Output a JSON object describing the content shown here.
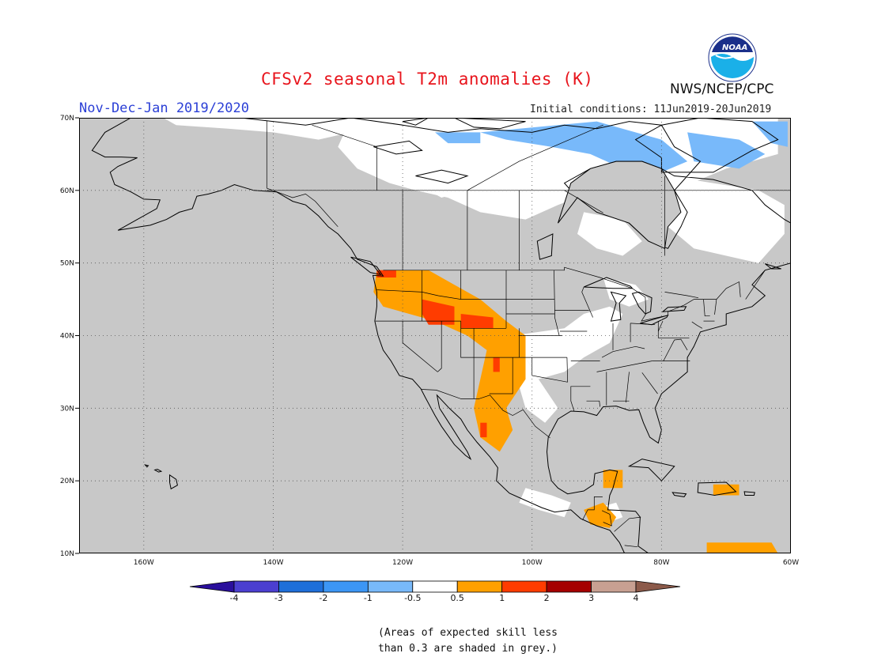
{
  "header": {
    "title": "CFSv2 seasonal T2m anomalies (K)",
    "season": "Nov-Dec-Jan 2019/2020",
    "initial_conditions": "Initial conditions: 11Jun2019-20Jun2019",
    "agency": "NWS/NCEP/CPC",
    "logo_text": "NOAA"
  },
  "map": {
    "projection": "lat-lon",
    "lon_range": [
      -170,
      -60
    ],
    "lat_range": [
      10,
      70
    ],
    "lat_ticks": [
      "10N",
      "20N",
      "30N",
      "40N",
      "50N",
      "60N",
      "70N"
    ],
    "lon_ticks": [
      "160W",
      "140W",
      "120W",
      "100W",
      "80W",
      "60W"
    ],
    "grid": "dotted",
    "colors": {
      "low_skill": "#c8c8c8",
      "near_zero": "#ffffff",
      "minus_1_to_minus_0_5": "#78b9fa",
      "minus_2_to_minus_1": "#3c96f5",
      "plus_0_5_to_1": "#ffa000",
      "plus_1_to_2": "#ff3c00",
      "plus_2_to_3": "#a50000",
      "land_outline": "#000000"
    }
  },
  "colorbar": {
    "labels": [
      "-4",
      "-3",
      "-2",
      "-1",
      "-0.5",
      "0.5",
      "1",
      "2",
      "3",
      "4"
    ],
    "colors": [
      "#2a0f9c",
      "#4b3fd0",
      "#1e6fd9",
      "#3c96f5",
      "#78b9fa",
      "#ffffff",
      "#ffa000",
      "#ff3c00",
      "#a50000",
      "#c8a092",
      "#8c5a4a"
    ]
  },
  "note": {
    "line1": "(Areas of expected skill less",
    "line2": "than 0.3 are shaded in grey.)"
  }
}
